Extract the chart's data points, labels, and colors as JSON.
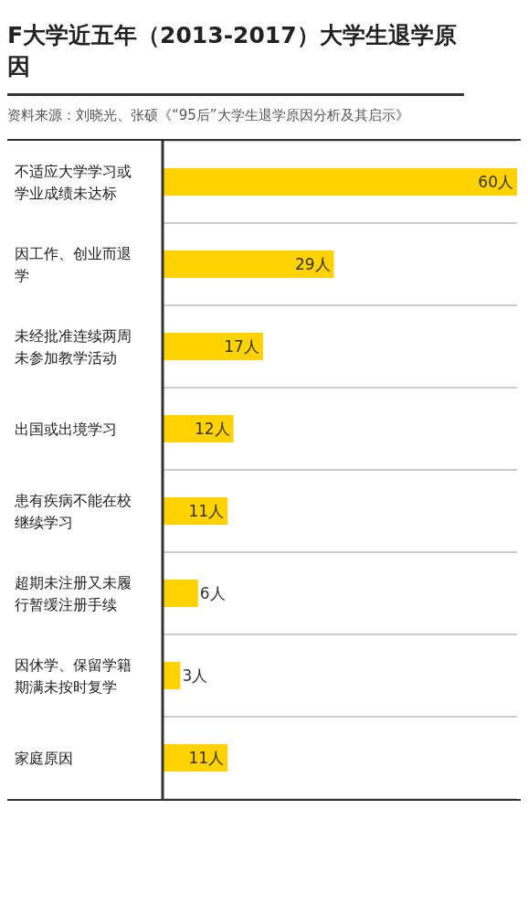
{
  "chart_data": {
    "type": "bar",
    "orientation": "horizontal",
    "title": "F大学近五年（2013-2017）大学生退学原因",
    "annotations": [
      "资料来源：刘晓光、张硕《“95后”大学生退学原因分析及其启示》"
    ],
    "categories": [
      "不适应大学学习或学业成绩未达标",
      "因工作、创业而退学",
      "未经批准连续两周未参加教学活动",
      "出国或出境学习",
      "患有疾病不能在校继续学习",
      "超期未注册又未履行暂缓注册手续",
      "因休学、保留学籍期满未按时复学",
      "家庭原因"
    ],
    "values": [
      60,
      29,
      17,
      12,
      11,
      6,
      3,
      11
    ],
    "value_labels": [
      "60人",
      "29人",
      "17人",
      "12人",
      "11人",
      "6人",
      "3人",
      "11人"
    ],
    "color": "#ffd200",
    "grid": "y"
  }
}
